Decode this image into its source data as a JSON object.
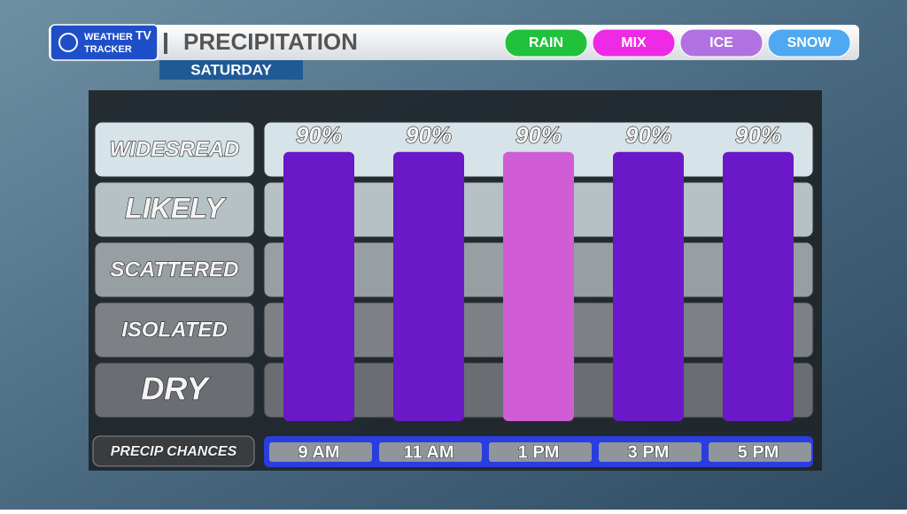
{
  "logo": {
    "line1": "WEATHER",
    "line2": "TRACKER",
    "badge": "TV"
  },
  "chart_data": {
    "type": "bar",
    "title": "PRECIPITATION",
    "subtitle": "SATURDAY",
    "legend": [
      {
        "name": "RAIN",
        "color": "#1fc23a"
      },
      {
        "name": "MIX",
        "color": "#ee2ae6"
      },
      {
        "name": "ICE",
        "color": "#b072e0"
      },
      {
        "name": "SNOW",
        "color": "#4ea8f2"
      }
    ],
    "levels": [
      "WIDESREAD",
      "LIKELY",
      "SCATTERED",
      "ISOLATED",
      "DRY"
    ],
    "x_label": "PRECIP CHANCES",
    "categories": [
      "9 AM",
      "11 AM",
      "1 PM",
      "3 PM",
      "5 PM"
    ],
    "values": [
      90,
      90,
      90,
      90,
      90
    ],
    "value_labels": [
      "90%",
      "90%",
      "90%",
      "90%",
      "90%"
    ],
    "colors": [
      "#6a18c8",
      "#6a18c8",
      "#d05cd6",
      "#6a18c8",
      "#6a18c8"
    ],
    "ylim": [
      0,
      100
    ]
  }
}
